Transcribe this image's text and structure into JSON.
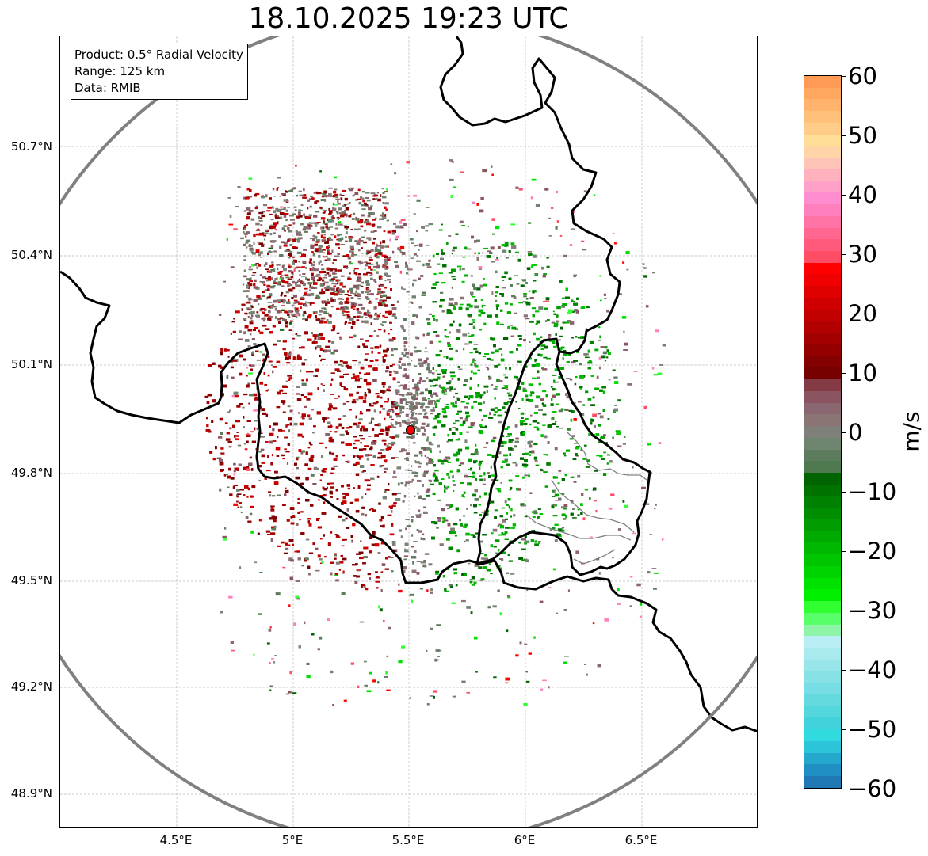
{
  "title": "18.10.2025 19:23 UTC",
  "info_box": {
    "product": "Product: 0.5° Radial Velocity",
    "range": "Range: 125 km",
    "data": "Data: RMIB"
  },
  "axes": {
    "y_ticks": [
      "50.7°N",
      "50.4°N",
      "50.1°N",
      "49.8°N",
      "49.5°N",
      "49.2°N",
      "48.9°N"
    ],
    "x_ticks": [
      "4.5°E",
      "5°E",
      "5.5°E",
      "6°E",
      "6.5°E"
    ],
    "lon_range": [
      4.0,
      7.0
    ],
    "lat_range": [
      48.8,
      51.0
    ]
  },
  "radar": {
    "name": "Radar site",
    "lon": 5.505,
    "lat": 49.914,
    "range_km": 125
  },
  "colorbar": {
    "unit": "m/s",
    "ticks": [
      "60",
      "50",
      "40",
      "30",
      "20",
      "10",
      "0",
      "−10",
      "−20",
      "−30",
      "−40",
      "−50",
      "−60"
    ],
    "range": [
      -60,
      60
    ],
    "colors_top_to_bottom": [
      "#ff9a57",
      "#ffa65f",
      "#ffb36d",
      "#ffc07a",
      "#ffcd88",
      "#ffdf98",
      "#ffd5a8",
      "#ffc4b8",
      "#ffb2be",
      "#ffa0c9",
      "#ff8dd0",
      "#ff80bd",
      "#ff73a6",
      "#ff6690",
      "#ff5a7b",
      "#ff4d66",
      "#ff0000",
      "#f00000",
      "#e00000",
      "#d10000",
      "#c20000",
      "#b30000",
      "#a30000",
      "#940000",
      "#850000",
      "#760000",
      "#843b45",
      "#8a5560",
      "#8a6670",
      "#8a7474",
      "#80807a",
      "#6f8570",
      "#5d7b5d",
      "#4f7a4f",
      "#006400",
      "#007200",
      "#008000",
      "#008e00",
      "#009c00",
      "#00aa00",
      "#00b800",
      "#00c600",
      "#00d400",
      "#00e200",
      "#00f000",
      "#30ff30",
      "#58ff68",
      "#8ef5a8",
      "#b9eef4",
      "#a9eaee",
      "#98e6ea",
      "#87e2e6",
      "#76dee4",
      "#64dadf",
      "#53d6dc",
      "#42d2db",
      "#30dadf",
      "#2bc4d8",
      "#25a8ce",
      "#1f8fc4",
      "#1f77b4"
    ]
  }
}
